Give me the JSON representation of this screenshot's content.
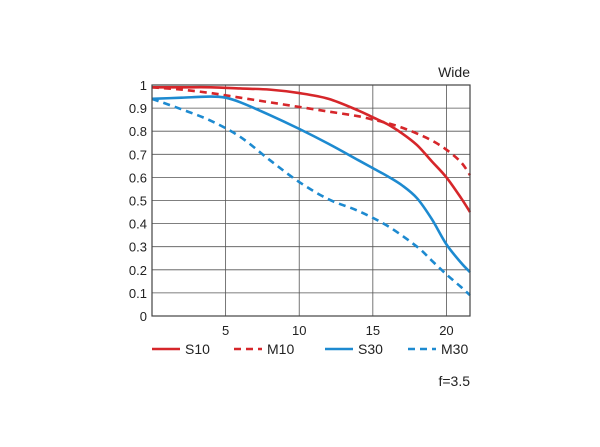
{
  "chart_data": {
    "type": "line",
    "title": "",
    "corner_label": "Wide",
    "aperture_label": "f=3.5",
    "xlabel": "",
    "ylabel": "",
    "xlim": [
      0,
      21.6
    ],
    "ylim": [
      0,
      1
    ],
    "x_ticks": [
      5,
      10,
      15,
      20
    ],
    "y_ticks": [
      0,
      0.1,
      0.2,
      0.3,
      0.4,
      0.5,
      0.6,
      0.7,
      0.8,
      0.9,
      1
    ],
    "y_tick_labels": [
      "0",
      "0.1",
      "0.2",
      "0.3",
      "0.4",
      "0.5",
      "0.6",
      "0.7",
      "0.8",
      "0.9",
      "1"
    ],
    "x_tick_labels": [
      "5",
      "10",
      "15",
      "20"
    ],
    "grid": true,
    "legend_position": "bottom",
    "series": [
      {
        "name": "S10",
        "color": "#d6262a",
        "dash": "solid",
        "x": [
          0,
          2,
          4,
          6,
          8,
          10,
          12,
          14,
          15,
          16,
          17,
          18,
          19,
          20,
          21,
          21.6
        ],
        "y": [
          0.99,
          0.99,
          0.99,
          0.985,
          0.98,
          0.965,
          0.94,
          0.89,
          0.86,
          0.83,
          0.79,
          0.74,
          0.67,
          0.6,
          0.51,
          0.45
        ]
      },
      {
        "name": "M10",
        "color": "#d6262a",
        "dash": "dashed",
        "x": [
          0,
          2,
          4,
          6,
          8,
          10,
          12,
          14,
          15,
          16,
          17,
          18,
          19,
          20,
          21,
          21.6
        ],
        "y": [
          0.99,
          0.98,
          0.965,
          0.945,
          0.925,
          0.905,
          0.885,
          0.865,
          0.85,
          0.835,
          0.815,
          0.79,
          0.76,
          0.72,
          0.665,
          0.61
        ]
      },
      {
        "name": "S30",
        "color": "#1d8ad0",
        "dash": "solid",
        "x": [
          0,
          2,
          4,
          5,
          6,
          8,
          10,
          12,
          14,
          15,
          16,
          17,
          18,
          19,
          20,
          21,
          21.6
        ],
        "y": [
          0.94,
          0.945,
          0.95,
          0.945,
          0.925,
          0.87,
          0.81,
          0.745,
          0.675,
          0.64,
          0.605,
          0.565,
          0.51,
          0.42,
          0.31,
          0.23,
          0.19
        ]
      },
      {
        "name": "M30",
        "color": "#1d8ad0",
        "dash": "dashed",
        "x": [
          0,
          2,
          4,
          6,
          8,
          10,
          12,
          14,
          16,
          18,
          19,
          20,
          21,
          21.6
        ],
        "y": [
          0.94,
          0.895,
          0.845,
          0.775,
          0.675,
          0.58,
          0.505,
          0.455,
          0.39,
          0.3,
          0.24,
          0.18,
          0.125,
          0.09
        ]
      }
    ]
  }
}
